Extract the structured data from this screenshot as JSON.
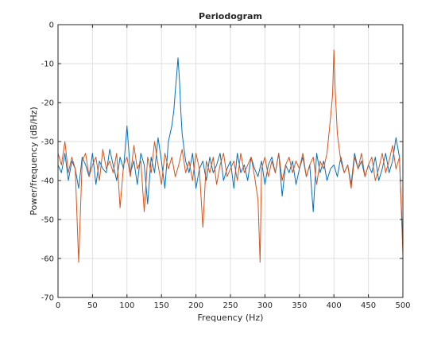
{
  "chart_data": {
    "type": "line",
    "title": "Periodogram",
    "xlabel": "Frequency (Hz)",
    "ylabel": "Power/frequency (dB/Hz)",
    "xlim": [
      0,
      500
    ],
    "ylim": [
      -70,
      0
    ],
    "xticks": [
      0,
      50,
      100,
      150,
      200,
      250,
      300,
      350,
      400,
      450,
      500
    ],
    "yticks": [
      0,
      -10,
      -20,
      -30,
      -40,
      -50,
      -60,
      -70
    ],
    "grid": true,
    "series": [
      {
        "color": "#0072BD",
        "x": [
          0,
          5,
          10,
          15,
          20,
          25,
          30,
          35,
          40,
          45,
          50,
          55,
          60,
          65,
          70,
          75,
          80,
          85,
          90,
          95,
          100,
          105,
          110,
          115,
          120,
          125,
          130,
          135,
          140,
          145,
          150,
          155,
          160,
          165,
          168,
          170,
          172,
          174,
          176,
          178,
          180,
          185,
          190,
          195,
          200,
          205,
          210,
          215,
          220,
          225,
          230,
          235,
          240,
          245,
          250,
          255,
          260,
          265,
          270,
          275,
          280,
          285,
          290,
          295,
          300,
          305,
          310,
          315,
          320,
          325,
          330,
          335,
          340,
          345,
          350,
          355,
          360,
          365,
          370,
          375,
          380,
          385,
          390,
          395,
          400,
          405,
          410,
          415,
          420,
          425,
          430,
          435,
          440,
          445,
          450,
          455,
          460,
          465,
          470,
          475,
          480,
          485,
          490,
          495,
          500
        ],
        "y": [
          -36,
          -38,
          -33,
          -40,
          -35,
          -37,
          -42,
          -34,
          -36,
          -39,
          -33,
          -41,
          -35,
          -37,
          -38,
          -32,
          -36,
          -40,
          -34,
          -37,
          -26,
          -38,
          -35,
          -41,
          -33,
          -36,
          -46,
          -34,
          -38,
          -29,
          -35,
          -42,
          -30,
          -26,
          -22,
          -17,
          -13,
          -8.5,
          -14,
          -22,
          -28,
          -35,
          -38,
          -33,
          -42,
          -37,
          -35,
          -40,
          -34,
          -38,
          -36,
          -33,
          -40,
          -37,
          -35,
          -42,
          -33,
          -38,
          -36,
          -40,
          -34,
          -37,
          -39,
          -35,
          -41,
          -36,
          -34,
          -38,
          -33,
          -44,
          -36,
          -38,
          -35,
          -41,
          -37,
          -34,
          -39,
          -36,
          -48,
          -33,
          -38,
          -35,
          -40,
          -37,
          -36,
          -39,
          -34,
          -38,
          -36,
          -41,
          -33,
          -37,
          -35,
          -39,
          -36,
          -38,
          -34,
          -40,
          -37,
          -33,
          -38,
          -35,
          -29,
          -34,
          -57
        ]
      },
      {
        "color": "#D95319",
        "x": [
          0,
          5,
          10,
          15,
          20,
          25,
          30,
          35,
          40,
          45,
          50,
          55,
          60,
          65,
          70,
          75,
          80,
          85,
          90,
          95,
          100,
          105,
          110,
          115,
          120,
          125,
          130,
          135,
          140,
          145,
          150,
          155,
          160,
          165,
          170,
          175,
          180,
          185,
          190,
          195,
          200,
          205,
          210,
          215,
          220,
          225,
          230,
          235,
          240,
          245,
          250,
          255,
          260,
          265,
          270,
          275,
          280,
          285,
          290,
          293,
          295,
          300,
          305,
          310,
          315,
          320,
          325,
          330,
          335,
          340,
          345,
          350,
          355,
          360,
          365,
          370,
          375,
          380,
          385,
          390,
          395,
          398,
          400,
          402,
          405,
          410,
          415,
          420,
          425,
          430,
          435,
          440,
          445,
          450,
          455,
          460,
          465,
          470,
          475,
          480,
          485,
          490,
          495,
          500
        ],
        "y": [
          -33,
          -36,
          -30,
          -38,
          -34,
          -37,
          -61,
          -35,
          -33,
          -39,
          -36,
          -34,
          -40,
          -32,
          -37,
          -35,
          -38,
          -33,
          -47,
          -36,
          -34,
          -39,
          -31,
          -37,
          -35,
          -48,
          -34,
          -38,
          -30,
          -36,
          -41,
          -33,
          -37,
          -34,
          -39,
          -36,
          -32,
          -38,
          -35,
          -40,
          -33,
          -37,
          -52,
          -35,
          -38,
          -34,
          -41,
          -36,
          -33,
          -39,
          -37,
          -35,
          -40,
          -33,
          -38,
          -36,
          -34,
          -39,
          -45,
          -61,
          -37,
          -34,
          -39,
          -35,
          -38,
          -33,
          -40,
          -36,
          -34,
          -38,
          -35,
          -37,
          -33,
          -39,
          -36,
          -34,
          -41,
          -35,
          -37,
          -33,
          -24,
          -18,
          -6.5,
          -17,
          -28,
          -35,
          -38,
          -36,
          -42,
          -34,
          -37,
          -33,
          -39,
          -36,
          -34,
          -40,
          -37,
          -33,
          -38,
          -35,
          -31,
          -37,
          -34,
          -59
        ]
      }
    ]
  }
}
